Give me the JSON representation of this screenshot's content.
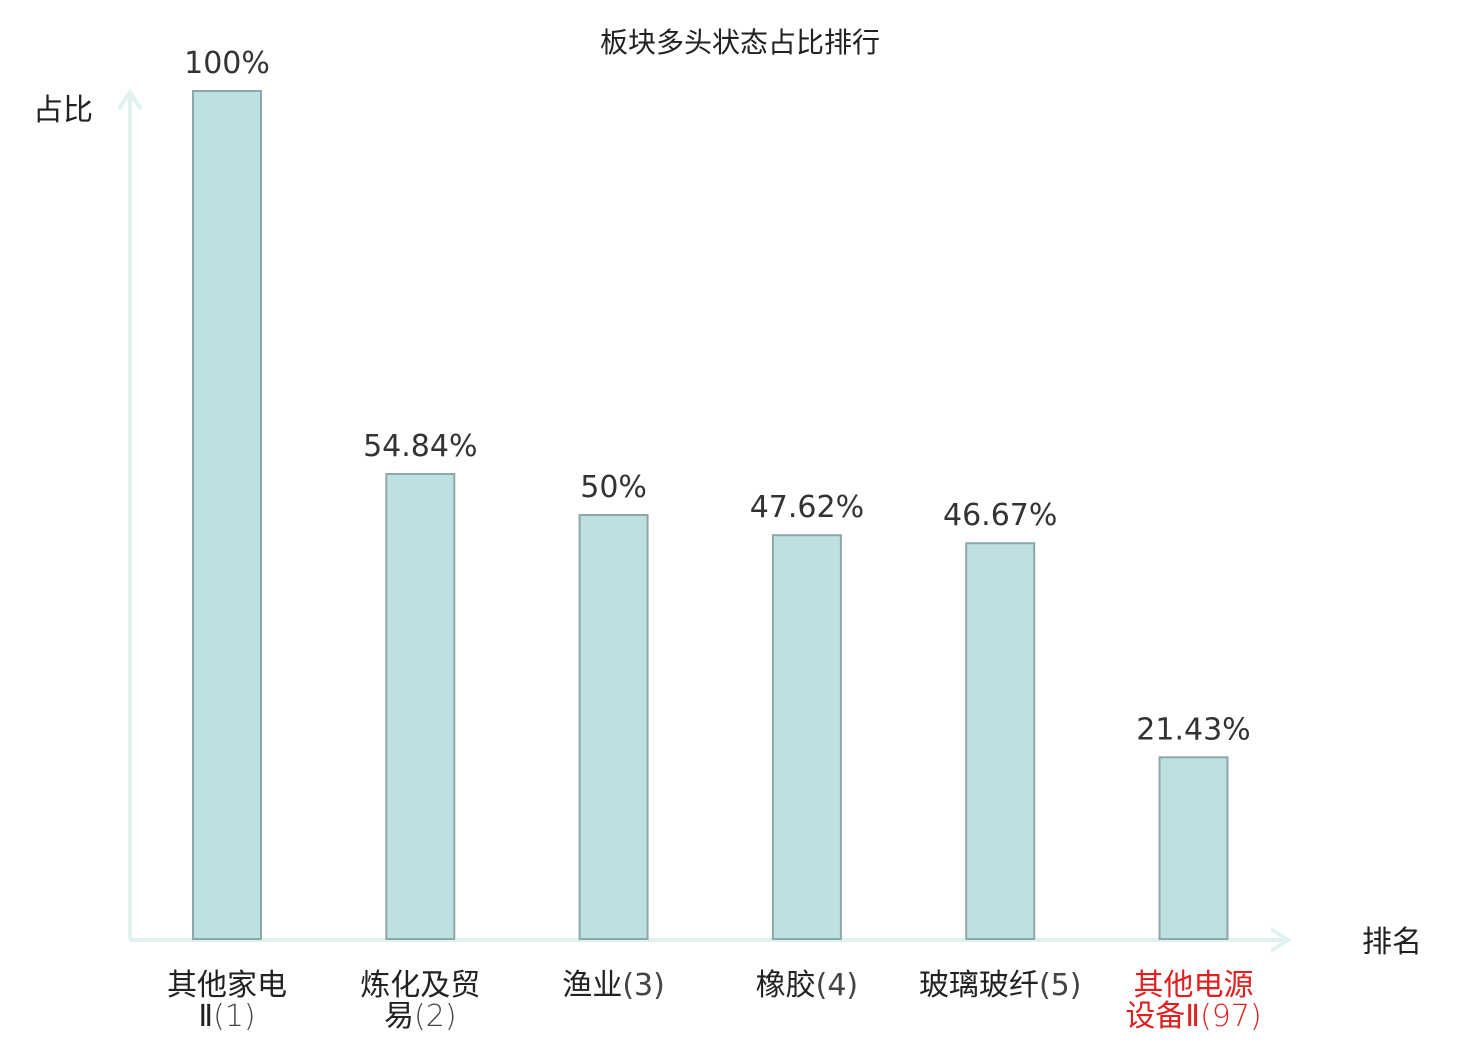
{
  "chart_data": {
    "type": "bar",
    "title": "板块多头状态占比排行",
    "xlabel": "排名",
    "ylabel": "占比",
    "ylim": [
      0,
      100
    ],
    "grid": false,
    "categories": [
      {
        "name": "其他家电",
        "sub": "Ⅱ",
        "rank": "(1)"
      },
      {
        "name": "炼化及贸",
        "sub": "易",
        "rank": "(2)"
      },
      {
        "name": "渔业",
        "sub": "",
        "rank": "(3)"
      },
      {
        "name": "橡胶",
        "sub": "",
        "rank": "(4)"
      },
      {
        "name": "玻璃玻纤",
        "sub": "",
        "rank": "(5)"
      },
      {
        "name": "其他电源",
        "sub": "设备Ⅱ",
        "rank": "(97)"
      }
    ],
    "series": [
      {
        "values": [
          100,
          54.84,
          50,
          47.62,
          46.67,
          21.43
        ],
        "labels": [
          "100%",
          "54.84%",
          "50%",
          "47.62%",
          "46.67%",
          "21.43%"
        ]
      }
    ],
    "highlight_index": 5,
    "colors": {
      "bar_fill": "#bde0e2",
      "bar_stroke": "#8fa7a8",
      "axis": "#e0f2ef",
      "text": "#333333",
      "title": "#222222",
      "highlight": "#e02020"
    }
  }
}
